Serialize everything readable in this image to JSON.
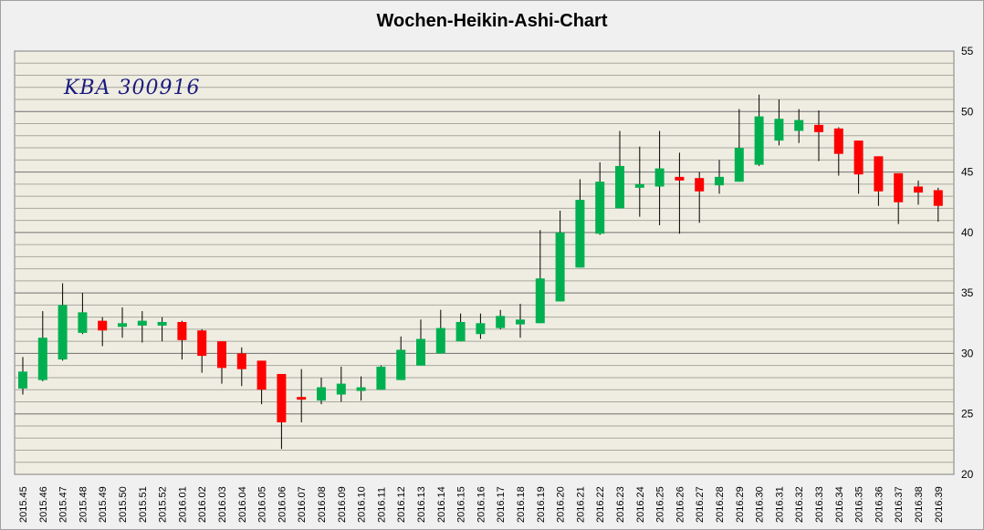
{
  "chart_data": {
    "type": "candlestick",
    "title": "Wochen-Heikin-Ashi-Chart",
    "annotation": "KBA 300916",
    "ylim": [
      20,
      55
    ],
    "y_ticks": [
      20,
      25,
      30,
      35,
      40,
      45,
      50,
      55
    ],
    "y_axis_position": "right",
    "grid": true,
    "colors": {
      "up": "#00b050",
      "down": "#ff0000",
      "background": "#efede1",
      "grid": "#808080",
      "wick": "#000000"
    },
    "categories": [
      "2015.45",
      "2015.46",
      "2015.47",
      "2015.48",
      "2015.49",
      "2015.50",
      "2015.51",
      "2015.52",
      "2016.01",
      "2016.02",
      "2016.03",
      "2016.04",
      "2016.05",
      "2016.06",
      "2016.07",
      "2016.08",
      "2016.09",
      "2016.10",
      "2016.11",
      "2016.12",
      "2016.13",
      "2016.14",
      "2016.15",
      "2016.16",
      "2016.17",
      "2016.18",
      "2016.19",
      "2016.20",
      "2016.21",
      "2016.22",
      "2016.23",
      "2016.24",
      "2016.25",
      "2016.26",
      "2016.27",
      "2016.28",
      "2016.29",
      "2016.30",
      "2016.31",
      "2016.32",
      "2016.33",
      "2016.34",
      "2016.35",
      "2016.36",
      "2016.37",
      "2016.38",
      "2016.39"
    ],
    "candles": [
      {
        "open": 27.1,
        "close": 28.5,
        "high": 29.7,
        "low": 26.6
      },
      {
        "open": 27.8,
        "close": 31.3,
        "high": 33.5,
        "low": 27.7
      },
      {
        "open": 29.5,
        "close": 34.0,
        "high": 35.8,
        "low": 29.4
      },
      {
        "open": 31.7,
        "close": 33.4,
        "high": 35.0,
        "low": 31.6
      },
      {
        "open": 32.7,
        "close": 31.9,
        "high": 33.0,
        "low": 30.6
      },
      {
        "open": 32.2,
        "close": 32.5,
        "high": 33.8,
        "low": 31.3
      },
      {
        "open": 32.3,
        "close": 32.7,
        "high": 33.5,
        "low": 30.9
      },
      {
        "open": 32.3,
        "close": 32.6,
        "high": 33.0,
        "low": 31.0
      },
      {
        "open": 32.6,
        "close": 31.1,
        "high": 32.7,
        "low": 29.5
      },
      {
        "open": 31.9,
        "close": 29.8,
        "high": 32.0,
        "low": 28.4
      },
      {
        "open": 31.0,
        "close": 28.8,
        "high": 31.0,
        "low": 27.5
      },
      {
        "open": 30.0,
        "close": 28.7,
        "high": 30.5,
        "low": 27.3
      },
      {
        "open": 29.4,
        "close": 27.0,
        "high": 29.4,
        "low": 25.8
      },
      {
        "open": 28.3,
        "close": 24.3,
        "high": 28.3,
        "low": 22.1
      },
      {
        "open": 26.4,
        "close": 26.2,
        "high": 28.7,
        "low": 24.3
      },
      {
        "open": 26.1,
        "close": 27.2,
        "high": 28.0,
        "low": 25.8
      },
      {
        "open": 26.6,
        "close": 27.5,
        "high": 28.9,
        "low": 26.0
      },
      {
        "open": 26.9,
        "close": 27.2,
        "high": 28.1,
        "low": 26.1
      },
      {
        "open": 27.0,
        "close": 28.9,
        "high": 29.0,
        "low": 27.0
      },
      {
        "open": 27.8,
        "close": 30.3,
        "high": 31.4,
        "low": 27.8
      },
      {
        "open": 29.0,
        "close": 31.2,
        "high": 32.8,
        "low": 29.0
      },
      {
        "open": 30.0,
        "close": 32.1,
        "high": 33.6,
        "low": 30.0
      },
      {
        "open": 31.0,
        "close": 32.6,
        "high": 33.3,
        "low": 31.0
      },
      {
        "open": 31.6,
        "close": 32.5,
        "high": 33.3,
        "low": 31.2
      },
      {
        "open": 32.1,
        "close": 33.1,
        "high": 33.6,
        "low": 32.0
      },
      {
        "open": 32.4,
        "close": 32.8,
        "high": 34.1,
        "low": 31.3
      },
      {
        "open": 32.5,
        "close": 36.2,
        "high": 40.2,
        "low": 32.5
      },
      {
        "open": 34.3,
        "close": 40.0,
        "high": 41.8,
        "low": 34.3
      },
      {
        "open": 37.1,
        "close": 42.7,
        "high": 44.4,
        "low": 37.1
      },
      {
        "open": 39.9,
        "close": 44.2,
        "high": 45.8,
        "low": 39.8
      },
      {
        "open": 42.0,
        "close": 45.5,
        "high": 48.4,
        "low": 42.0
      },
      {
        "open": 43.7,
        "close": 44.0,
        "high": 47.1,
        "low": 41.3
      },
      {
        "open": 43.8,
        "close": 45.3,
        "high": 48.4,
        "low": 40.6
      },
      {
        "open": 44.6,
        "close": 44.3,
        "high": 46.6,
        "low": 39.9
      },
      {
        "open": 44.5,
        "close": 43.4,
        "high": 45.0,
        "low": 40.8
      },
      {
        "open": 43.9,
        "close": 44.6,
        "high": 46.0,
        "low": 43.2
      },
      {
        "open": 44.2,
        "close": 47.0,
        "high": 50.2,
        "low": 44.2
      },
      {
        "open": 45.6,
        "close": 49.6,
        "high": 51.4,
        "low": 45.5
      },
      {
        "open": 47.6,
        "close": 49.4,
        "high": 51.0,
        "low": 47.2
      },
      {
        "open": 48.4,
        "close": 49.3,
        "high": 50.2,
        "low": 47.4
      },
      {
        "open": 48.9,
        "close": 48.3,
        "high": 50.1,
        "low": 45.9
      },
      {
        "open": 48.6,
        "close": 46.5,
        "high": 48.7,
        "low": 44.7
      },
      {
        "open": 47.6,
        "close": 44.8,
        "high": 47.6,
        "low": 43.2
      },
      {
        "open": 46.3,
        "close": 43.4,
        "high": 46.3,
        "low": 42.2
      },
      {
        "open": 44.9,
        "close": 42.5,
        "high": 44.9,
        "low": 40.7
      },
      {
        "open": 43.8,
        "close": 43.3,
        "high": 44.3,
        "low": 42.3
      },
      {
        "open": 43.5,
        "close": 42.2,
        "high": 43.7,
        "low": 40.9
      }
    ]
  }
}
